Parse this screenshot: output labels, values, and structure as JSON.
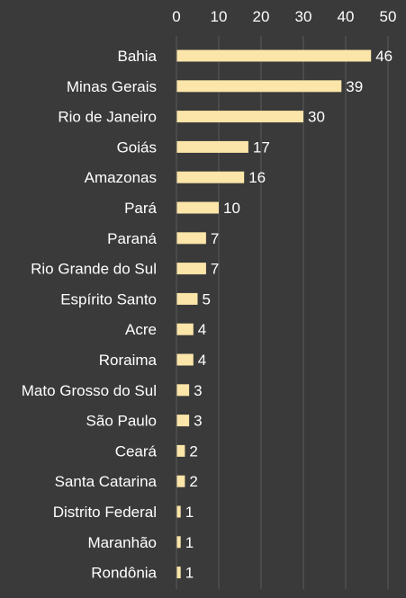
{
  "chart_data": {
    "type": "bar",
    "orientation": "horizontal",
    "title": "",
    "xlabel": "",
    "ylabel": "",
    "xlim": [
      0,
      50
    ],
    "ticks": [
      "0",
      "10",
      "20",
      "30",
      "40",
      "50"
    ],
    "tick_values": [
      0,
      10,
      20,
      30,
      40,
      50
    ],
    "x_axis_position": "top",
    "grid": true,
    "legend": "none",
    "categories": [
      "Bahia",
      "Minas Gerais",
      "Rio de Janeiro",
      "Goiás",
      "Amazonas",
      "Pará",
      "Paraná",
      "Rio Grande do Sul",
      "Espírito Santo",
      "Acre",
      "Roraima",
      "Mato Grosso do Sul",
      "São Paulo",
      "Ceará",
      "Santa Catarina",
      "Distrito Federal",
      "Maranhão",
      "Rondônia"
    ],
    "values": [
      46,
      39,
      30,
      17,
      16,
      10,
      7,
      7,
      5,
      4,
      4,
      3,
      3,
      2,
      2,
      1,
      1,
      1
    ],
    "data_labels": [
      "46",
      "39",
      "30",
      "17",
      "16",
      "10",
      "7",
      "7",
      "5",
      "4",
      "4",
      "3",
      "3",
      "2",
      "2",
      "1",
      "1",
      "1"
    ]
  },
  "colors": {
    "background": "#3a3a3a",
    "bar": "#fbe5a8",
    "text": "#ffffff",
    "grid": "#595959"
  }
}
